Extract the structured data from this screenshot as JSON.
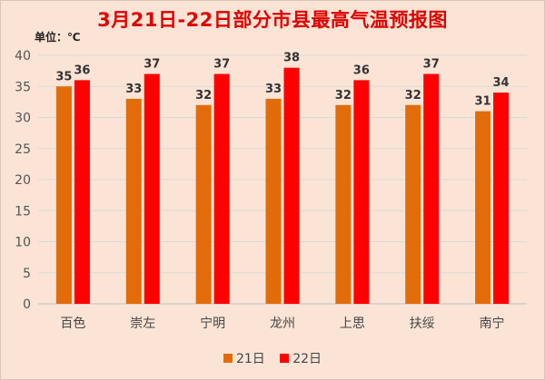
{
  "chart_data": {
    "type": "bar",
    "title": "3月21日-22日部分市县最高气温预报图",
    "unit": "单位：℃",
    "categories": [
      "百色",
      "崇左",
      "宁明",
      "龙州",
      "上思",
      "扶绥",
      "南宁"
    ],
    "series": [
      {
        "name": "21日",
        "color": "#e36c0a",
        "values": [
          35,
          33,
          32,
          33,
          32,
          32,
          31
        ]
      },
      {
        "name": "22日",
        "color": "#ff0000",
        "values": [
          36,
          37,
          37,
          38,
          36,
          37,
          34
        ]
      }
    ],
    "ylim": [
      0,
      40
    ],
    "yticks": [
      0,
      5,
      10,
      15,
      20,
      25,
      30,
      35,
      40
    ],
    "grid": true,
    "legend_position": "bottom"
  }
}
